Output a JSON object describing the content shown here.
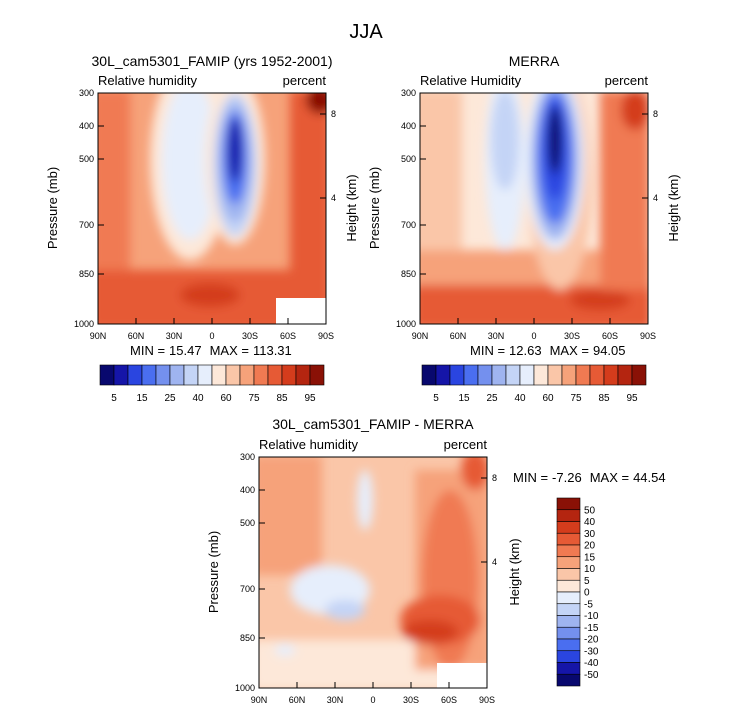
{
  "figure_title": "JJA",
  "chart_data": [
    {
      "type": "heatmap",
      "title": "30L_cam5301_FAMIP (yrs 1952-2001)",
      "left_label": "Relative humidity",
      "right_label": "percent",
      "ylabel": "Pressure (mb)",
      "ylabel2": "Height (km)",
      "x_ticks": [
        "90N",
        "60N",
        "30N",
        "0",
        "30S",
        "60S",
        "90S"
      ],
      "y_ticks": [
        "300",
        "400",
        "500",
        "700",
        "850",
        "1000"
      ],
      "y2_ticks": [
        "8",
        "4"
      ],
      "min_label": "MIN =",
      "min_value": "15.47",
      "max_label": "MAX =",
      "max_value": "113.31",
      "colorbar_labels": [
        "5",
        "15",
        "25",
        "40",
        "60",
        "75",
        "85",
        "95"
      ]
    },
    {
      "type": "heatmap",
      "title": "MERRA",
      "left_label": "Relative Humidity",
      "right_label": "percent",
      "ylabel": "Pressure (mb)",
      "ylabel2": "Height (km)",
      "x_ticks": [
        "90N",
        "60N",
        "30N",
        "0",
        "30S",
        "60S",
        "90S"
      ],
      "y_ticks": [
        "300",
        "400",
        "500",
        "700",
        "850",
        "1000"
      ],
      "y2_ticks": [
        "8",
        "4"
      ],
      "min_label": "MIN =",
      "min_value": "12.63",
      "max_label": "MAX =",
      "max_value": "94.05",
      "colorbar_labels": [
        "5",
        "15",
        "25",
        "40",
        "60",
        "75",
        "85",
        "95"
      ]
    },
    {
      "type": "heatmap",
      "title": "30L_cam5301_FAMIP - MERRA",
      "left_label": "Relative humidity",
      "right_label": "percent",
      "ylabel": "Pressure (mb)",
      "ylabel2": "Height (km)",
      "x_ticks": [
        "90N",
        "60N",
        "30N",
        "0",
        "30S",
        "60S",
        "90S"
      ],
      "y_ticks": [
        "300",
        "400",
        "500",
        "700",
        "850",
        "1000"
      ],
      "y2_ticks": [
        "8",
        "4"
      ],
      "min_label": "MIN =",
      "min_value": "-7.26",
      "max_label": "MAX =",
      "max_value": "44.54",
      "colorbar_labels": [
        "50",
        "40",
        "30",
        "20",
        "15",
        "10",
        "5",
        "0",
        "-5",
        "-10",
        "-15",
        "-20",
        "-30",
        "-40",
        "-50"
      ]
    }
  ],
  "colors": {
    "rh_scale": [
      "#08086e",
      "#1515a8",
      "#2a45e0",
      "#4a6ef0",
      "#7490ee",
      "#9fb4f0",
      "#c4d4f6",
      "#e6eefc",
      "#fde8d9",
      "#fac6a8",
      "#f6a27a",
      "#f07a52",
      "#e65a35",
      "#d43c1c",
      "#b42510",
      "#8a1106"
    ],
    "diff_scale": [
      "#8a1106",
      "#b42510",
      "#d43c1c",
      "#e65a35",
      "#f07a52",
      "#f6a27a",
      "#fac6a8",
      "#fde8d9",
      "#e6eefc",
      "#c4d4f6",
      "#9fb4f0",
      "#7490ee",
      "#4a6ef0",
      "#2a45e0",
      "#1515a8",
      "#08086e"
    ]
  }
}
